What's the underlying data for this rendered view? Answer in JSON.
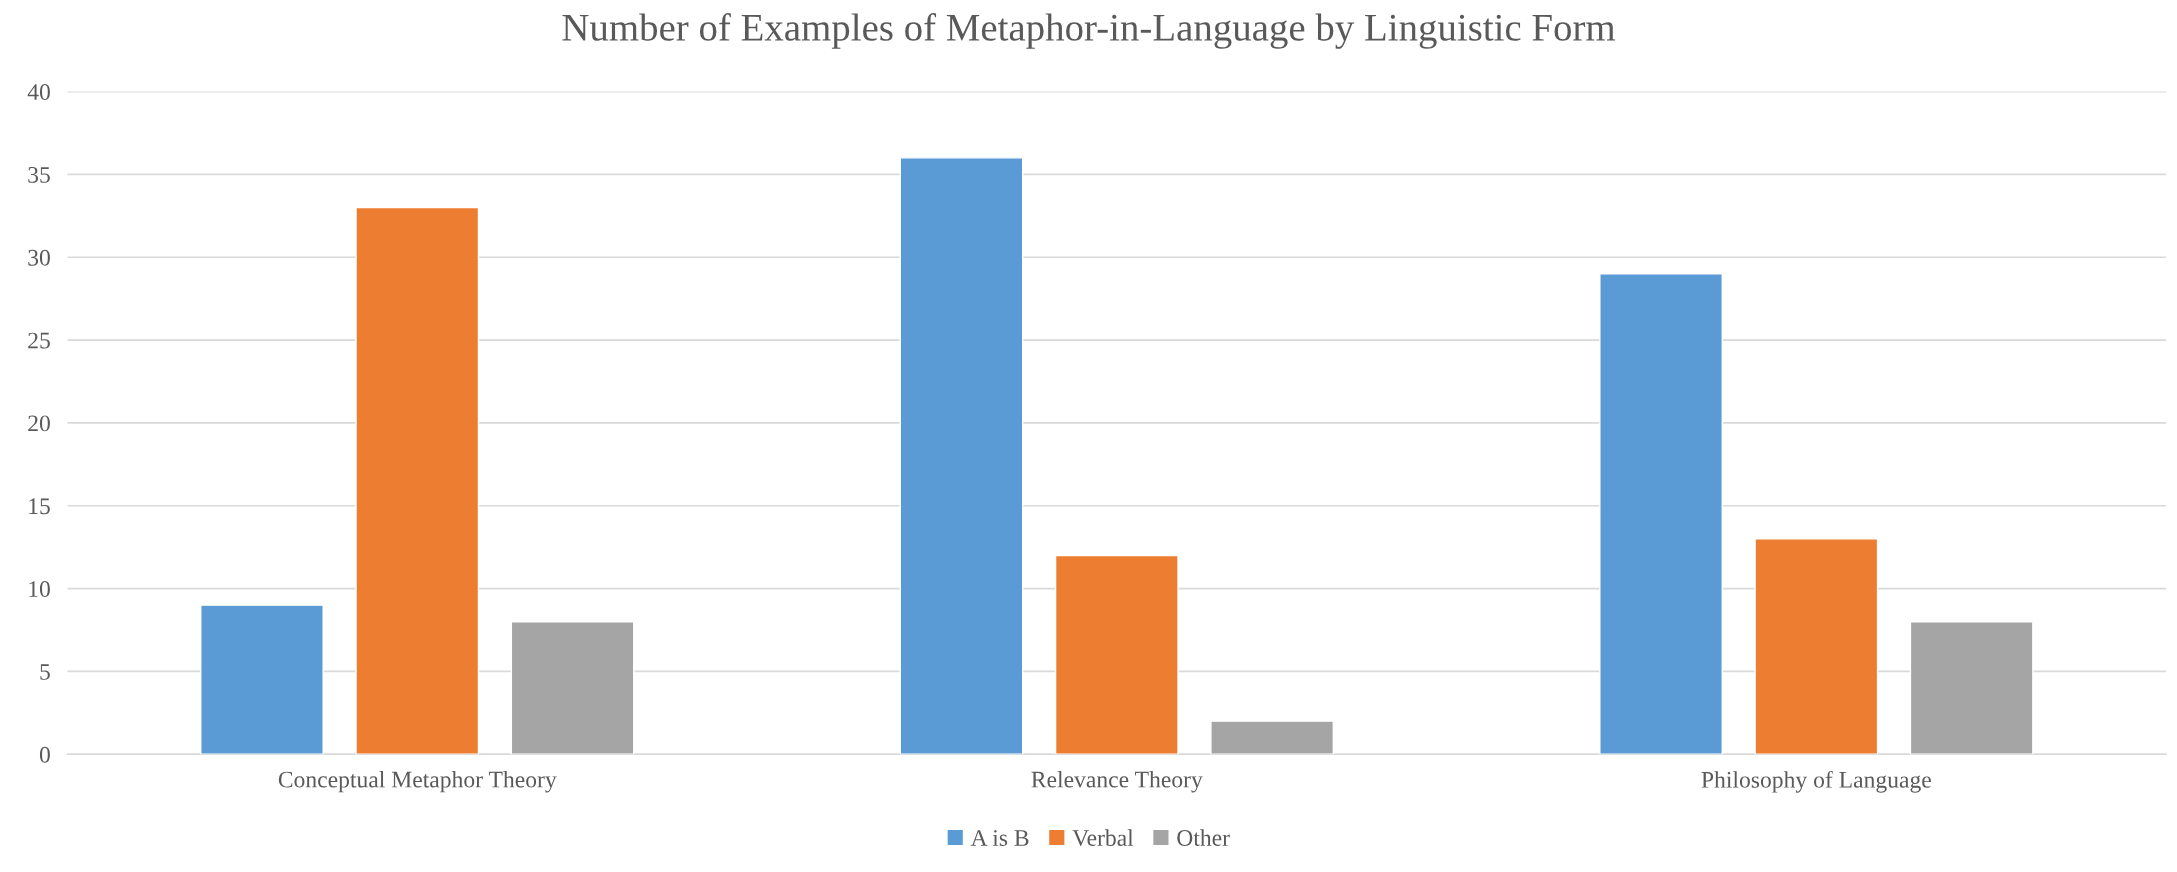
{
  "chart_data": {
    "type": "bar",
    "title": "Number of Examples of Metaphor-in-Language by Linguistic Form",
    "categories": [
      "Conceptual Metaphor Theory",
      "Relevance Theory",
      "Philosophy of Language"
    ],
    "series": [
      {
        "name": "A is B",
        "color": "#5b9bd5",
        "values": [
          9,
          36,
          29
        ]
      },
      {
        "name": "Verbal",
        "color": "#ed7d31",
        "values": [
          33,
          12,
          13
        ]
      },
      {
        "name": "Other",
        "color": "#a5a5a5",
        "values": [
          8,
          2,
          8
        ]
      }
    ],
    "ylim": [
      0,
      40
    ],
    "yticks": [
      0,
      5,
      10,
      15,
      20,
      25,
      30,
      35,
      40
    ],
    "grid": "y",
    "legend": "bottom"
  }
}
